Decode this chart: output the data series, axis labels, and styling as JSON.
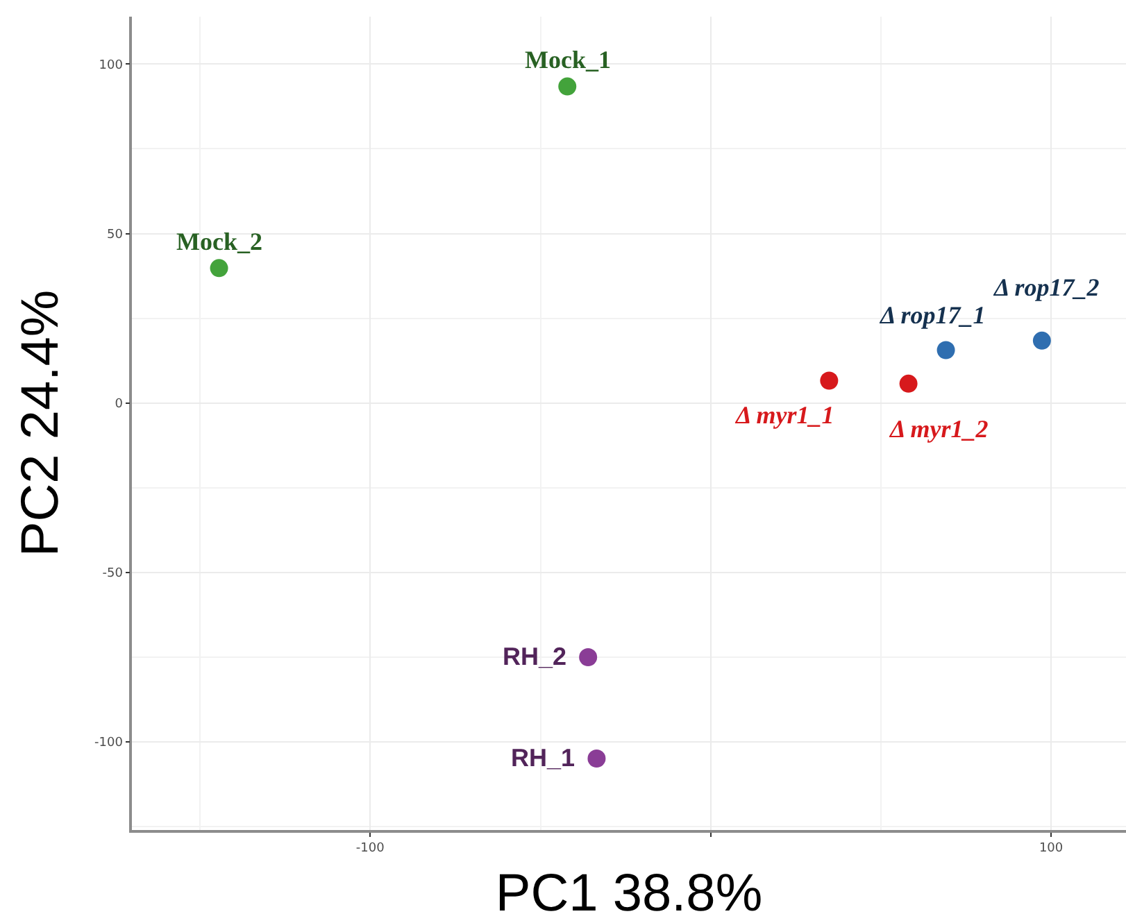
{
  "chart_data": {
    "type": "scatter",
    "xlabel": "PC1 38.8%",
    "ylabel": "PC2 24.4%",
    "xlim": [
      -170,
      122
    ],
    "ylim": [
      -126,
      114
    ],
    "xticks": [
      -100,
      {
        "value": 0,
        "label": null
      },
      100
    ],
    "yticks": [
      -100,
      -50,
      0,
      50,
      100
    ],
    "grid": true,
    "marker": "circle",
    "series": [
      {
        "color": "#43a33b",
        "x": [
          -42.1,
          -144.4
        ],
        "values": [
          93.4,
          39.8
        ]
      },
      {
        "color": "#d7191c",
        "x": [
          34.8,
          58.1
        ],
        "values": [
          6.6,
          5.7
        ]
      },
      {
        "color": "#2f6eb0",
        "x": [
          69.1,
          97.3
        ],
        "values": [
          15.6,
          18.4
        ]
      },
      {
        "color": "#8a3d96",
        "x": [
          -36,
          -33.5
        ],
        "values": [
          -75,
          -104.9
        ]
      }
    ],
    "annotations": [
      {
        "text": "Mock_1",
        "x": -42.1,
        "y": 93.4
      },
      {
        "text": "Mock_2",
        "x": -144.4,
        "y": 39.8
      },
      {
        "text": "Δ myr1_1",
        "x": 34.8,
        "y": 6.6
      },
      {
        "text": "Δ myr1_2",
        "x": 58.1,
        "y": 5.7
      },
      {
        "text": "Δ rop17_1",
        "x": 69.1,
        "y": 15.6
      },
      {
        "text": "Δ rop17_2",
        "x": 97.3,
        "y": 18.4
      },
      {
        "text": "RH_2",
        "x": -36,
        "y": -75
      },
      {
        "text": "RH_1",
        "x": -33.5,
        "y": -104.9
      }
    ]
  }
}
